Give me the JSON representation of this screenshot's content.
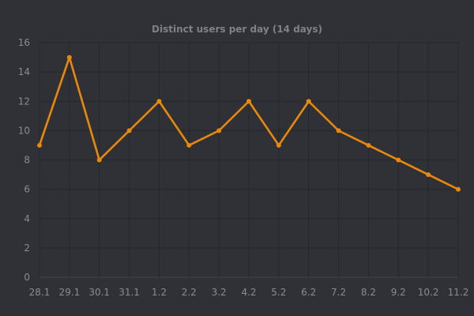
{
  "chart_data": {
    "type": "line",
    "title": "Distinct users per day (14 days)",
    "xlabel": "",
    "ylabel": "",
    "categories": [
      "28.1",
      "29.1",
      "30.1",
      "31.1",
      "1.2",
      "2.2",
      "3.2",
      "4.2",
      "5.2",
      "6.2",
      "7.2",
      "8.2",
      "9.2",
      "10.2",
      "11.2"
    ],
    "series": [
      {
        "values": [
          9,
          15,
          8,
          10,
          12,
          9,
          10,
          12,
          9,
          12,
          10,
          9,
          8,
          7,
          6
        ]
      }
    ],
    "ylim": [
      0,
      16
    ],
    "yticks": [
      0,
      2,
      4,
      6,
      8,
      10,
      12,
      14,
      16
    ],
    "grid": true,
    "legend": "none",
    "colors": {
      "background": "#303136",
      "line": "#e8890c",
      "grid": "#26272b"
    }
  }
}
